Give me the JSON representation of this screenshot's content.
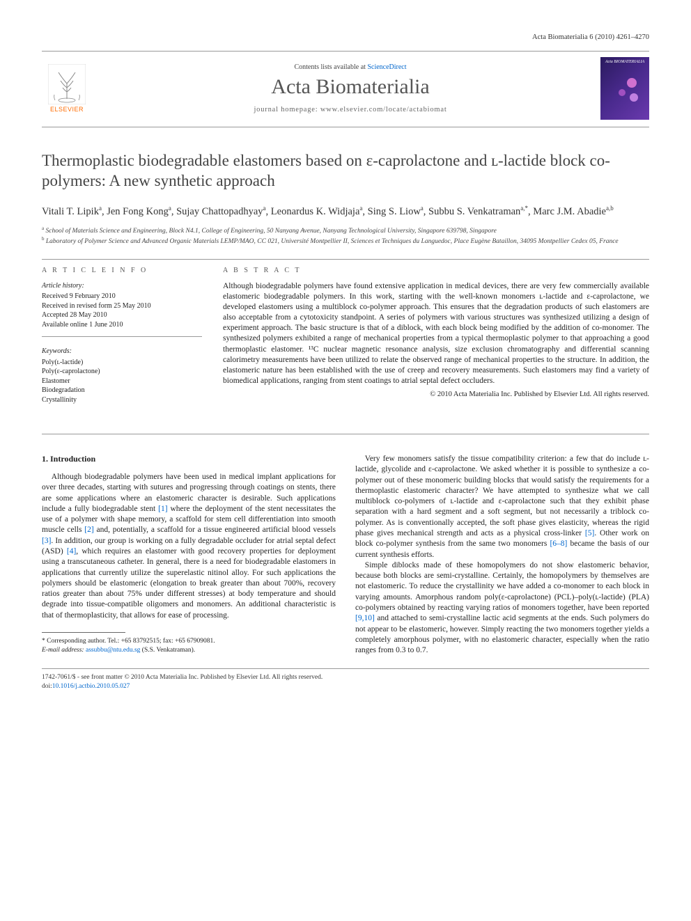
{
  "running_head": "Acta Biomaterialia 6 (2010) 4261–4270",
  "masthead": {
    "contents_prefix": "Contents lists available at ",
    "contents_link": "ScienceDirect",
    "journal": "Acta Biomaterialia",
    "homepage_prefix": "journal homepage: ",
    "homepage": "www.elsevier.com/locate/actabiomat",
    "publisher_logo_text": "ELSEVIER",
    "cover_label": "Acta BIOMATERIALIA"
  },
  "title": "Thermoplastic biodegradable elastomers based on ε-caprolactone and ʟ-lactide block co-polymers: A new synthetic approach",
  "authors_html": "Vitali T. Lipik<sup>a</sup>, Jen Fong Kong<sup>a</sup>, Sujay Chattopadhyay<sup>a</sup>, Leonardus K. Widjaja<sup>a</sup>, Sing S. Liow<sup>a</sup>, Subbu S. Venkatraman<sup>a,*</sup>, Marc J.M. Abadie<sup>a,b</sup>",
  "affiliations": [
    {
      "mark": "a",
      "text": "School of Materials Science and Engineering, Block N4.1, College of Engineering, 50 Nanyang Avenue, Nanyang Technological University, Singapore 639798, Singapore"
    },
    {
      "mark": "b",
      "text": "Laboratory of Polymer Science and Advanced Organic Materials LEMP/MAO, CC 021, Université Montpellier II, Sciences et Techniques du Languedoc, Place Eugène Bataillon, 34095 Montpellier Cedex 05, France"
    }
  ],
  "info": {
    "heading": "A R T I C L E   I N F O",
    "history_head": "Article history:",
    "history": [
      "Received 9 February 2010",
      "Received in revised form 25 May 2010",
      "Accepted 28 May 2010",
      "Available online 1 June 2010"
    ],
    "keywords_head": "Keywords:",
    "keywords": [
      "Poly(ʟ-lactide)",
      "Poly(ε-caprolactone)",
      "Elastomer",
      "Biodegradation",
      "Crystallinity"
    ]
  },
  "abstract": {
    "heading": "A B S T R A C T",
    "text": "Although biodegradable polymers have found extensive application in medical devices, there are very few commercially available elastomeric biodegradable polymers. In this work, starting with the well-known monomers ʟ-lactide and ε-caprolactone, we developed elastomers using a multiblock co-polymer approach. This ensures that the degradation products of such elastomers are also acceptable from a cytotoxicity standpoint. A series of polymers with various structures was synthesized utilizing a design of experiment approach. The basic structure is that of a diblock, with each block being modified by the addition of co-monomer. The synthesized polymers exhibited a range of mechanical properties from a typical thermoplastic polymer to that approaching a good thermoplastic elastomer. ¹³C nuclear magnetic resonance analysis, size exclusion chromatography and differential scanning calorimetry measurements have been utilized to relate the observed range of mechanical properties to the structure. In addition, the elastomeric nature has been established with the use of creep and recovery measurements. Such elastomers may find a variety of biomedical applications, ranging from stent coatings to atrial septal defect occluders.",
    "copyright": "© 2010 Acta Materialia Inc. Published by Elsevier Ltd. All rights reserved."
  },
  "body": {
    "section1_head": "1. Introduction",
    "col1_p1": "Although biodegradable polymers have been used in medical implant applications for over three decades, starting with sutures and progressing through coatings on stents, there are some applications where an elastomeric character is desirable. Such applications include a fully biodegradable stent [1] where the deployment of the stent necessitates the use of a polymer with shape memory, a scaffold for stem cell differentiation into smooth muscle cells [2] and, potentially, a scaffold for a tissue engineered artificial blood vessels [3]. In addition, our group is working on a fully degradable occluder for atrial septal defect (ASD) [4], which requires an elastomer with good recovery properties for deployment using a transcutaneous catheter. In general, there is a need for biodegradable elastomers in applications that currently utilize the superelastic nitinol alloy. For such applications the polymers should be elastomeric (elongation to break greater than about 700%, recovery ratios greater than about 75% under different stresses) at body temperature and should degrade into tissue-compatible oligomers and monomers. An additional characteristic is that of thermoplasticity, that allows for ease of processing.",
    "col2_p1": "Very few monomers satisfy the tissue compatibility criterion: a few that do include ʟ-lactide, glycolide and ε-caprolactone. We asked whether it is possible to synthesize a co-polymer out of these monomeric building blocks that would satisfy the requirements for a thermoplastic elastomeric character? We have attempted to synthesize what we call multiblock co-polymers of ʟ-lactide and ε-caprolactone such that they exhibit phase separation with a hard segment and a soft segment, but not necessarily a triblock co-polymer. As is conventionally accepted, the soft phase gives elasticity, whereas the rigid phase gives mechanical strength and acts as a physical cross-linker [5]. Other work on block co-polymer synthesis from the same two monomers [6–8] became the basis of our current synthesis efforts.",
    "col2_p2": "Simple diblocks made of these homopolymers do not show elastomeric behavior, because both blocks are semi-crystalline. Certainly, the homopolymers by themselves are not elastomeric. To reduce the crystallinity we have added a co-monomer to each block in varying amounts. Amorphous random poly(ε-caprolactone) (PCL)–poly(ʟ-lactide) (PLA) co-polymers obtained by reacting varying ratios of monomers together, have been reported [9,10] and attached to semi-crystalline lactic acid segments at the ends. Such polymers do not appear to be elastomeric, however. Simply reacting the two monomers together yields a completely amorphous polymer, with no elastomeric character, especially when the ratio ranges from 0.3 to 0.7."
  },
  "footnotes": {
    "corr": "* Corresponding author. Tel.: +65 83792515; fax: +65 67909081.",
    "email_label": "E-mail address:",
    "email": "assubbu@ntu.edu.sg",
    "email_who": "(S.S. Venkatraman)."
  },
  "bottom": {
    "issn": "1742-7061/$ - see front matter © 2010 Acta Materialia Inc. Published by Elsevier Ltd. All rights reserved.",
    "doi_label": "doi:",
    "doi": "10.1016/j.actbio.2010.05.027"
  },
  "colors": {
    "link": "#0066cc",
    "elsevier_orange": "#ff6b00",
    "text": "#222222",
    "muted": "#555555",
    "rule": "#999999"
  },
  "typography": {
    "body_pt": 11.5,
    "title_pt": 23,
    "journal_pt": 30,
    "footnote_pt": 9.5,
    "info_pt": 10
  }
}
